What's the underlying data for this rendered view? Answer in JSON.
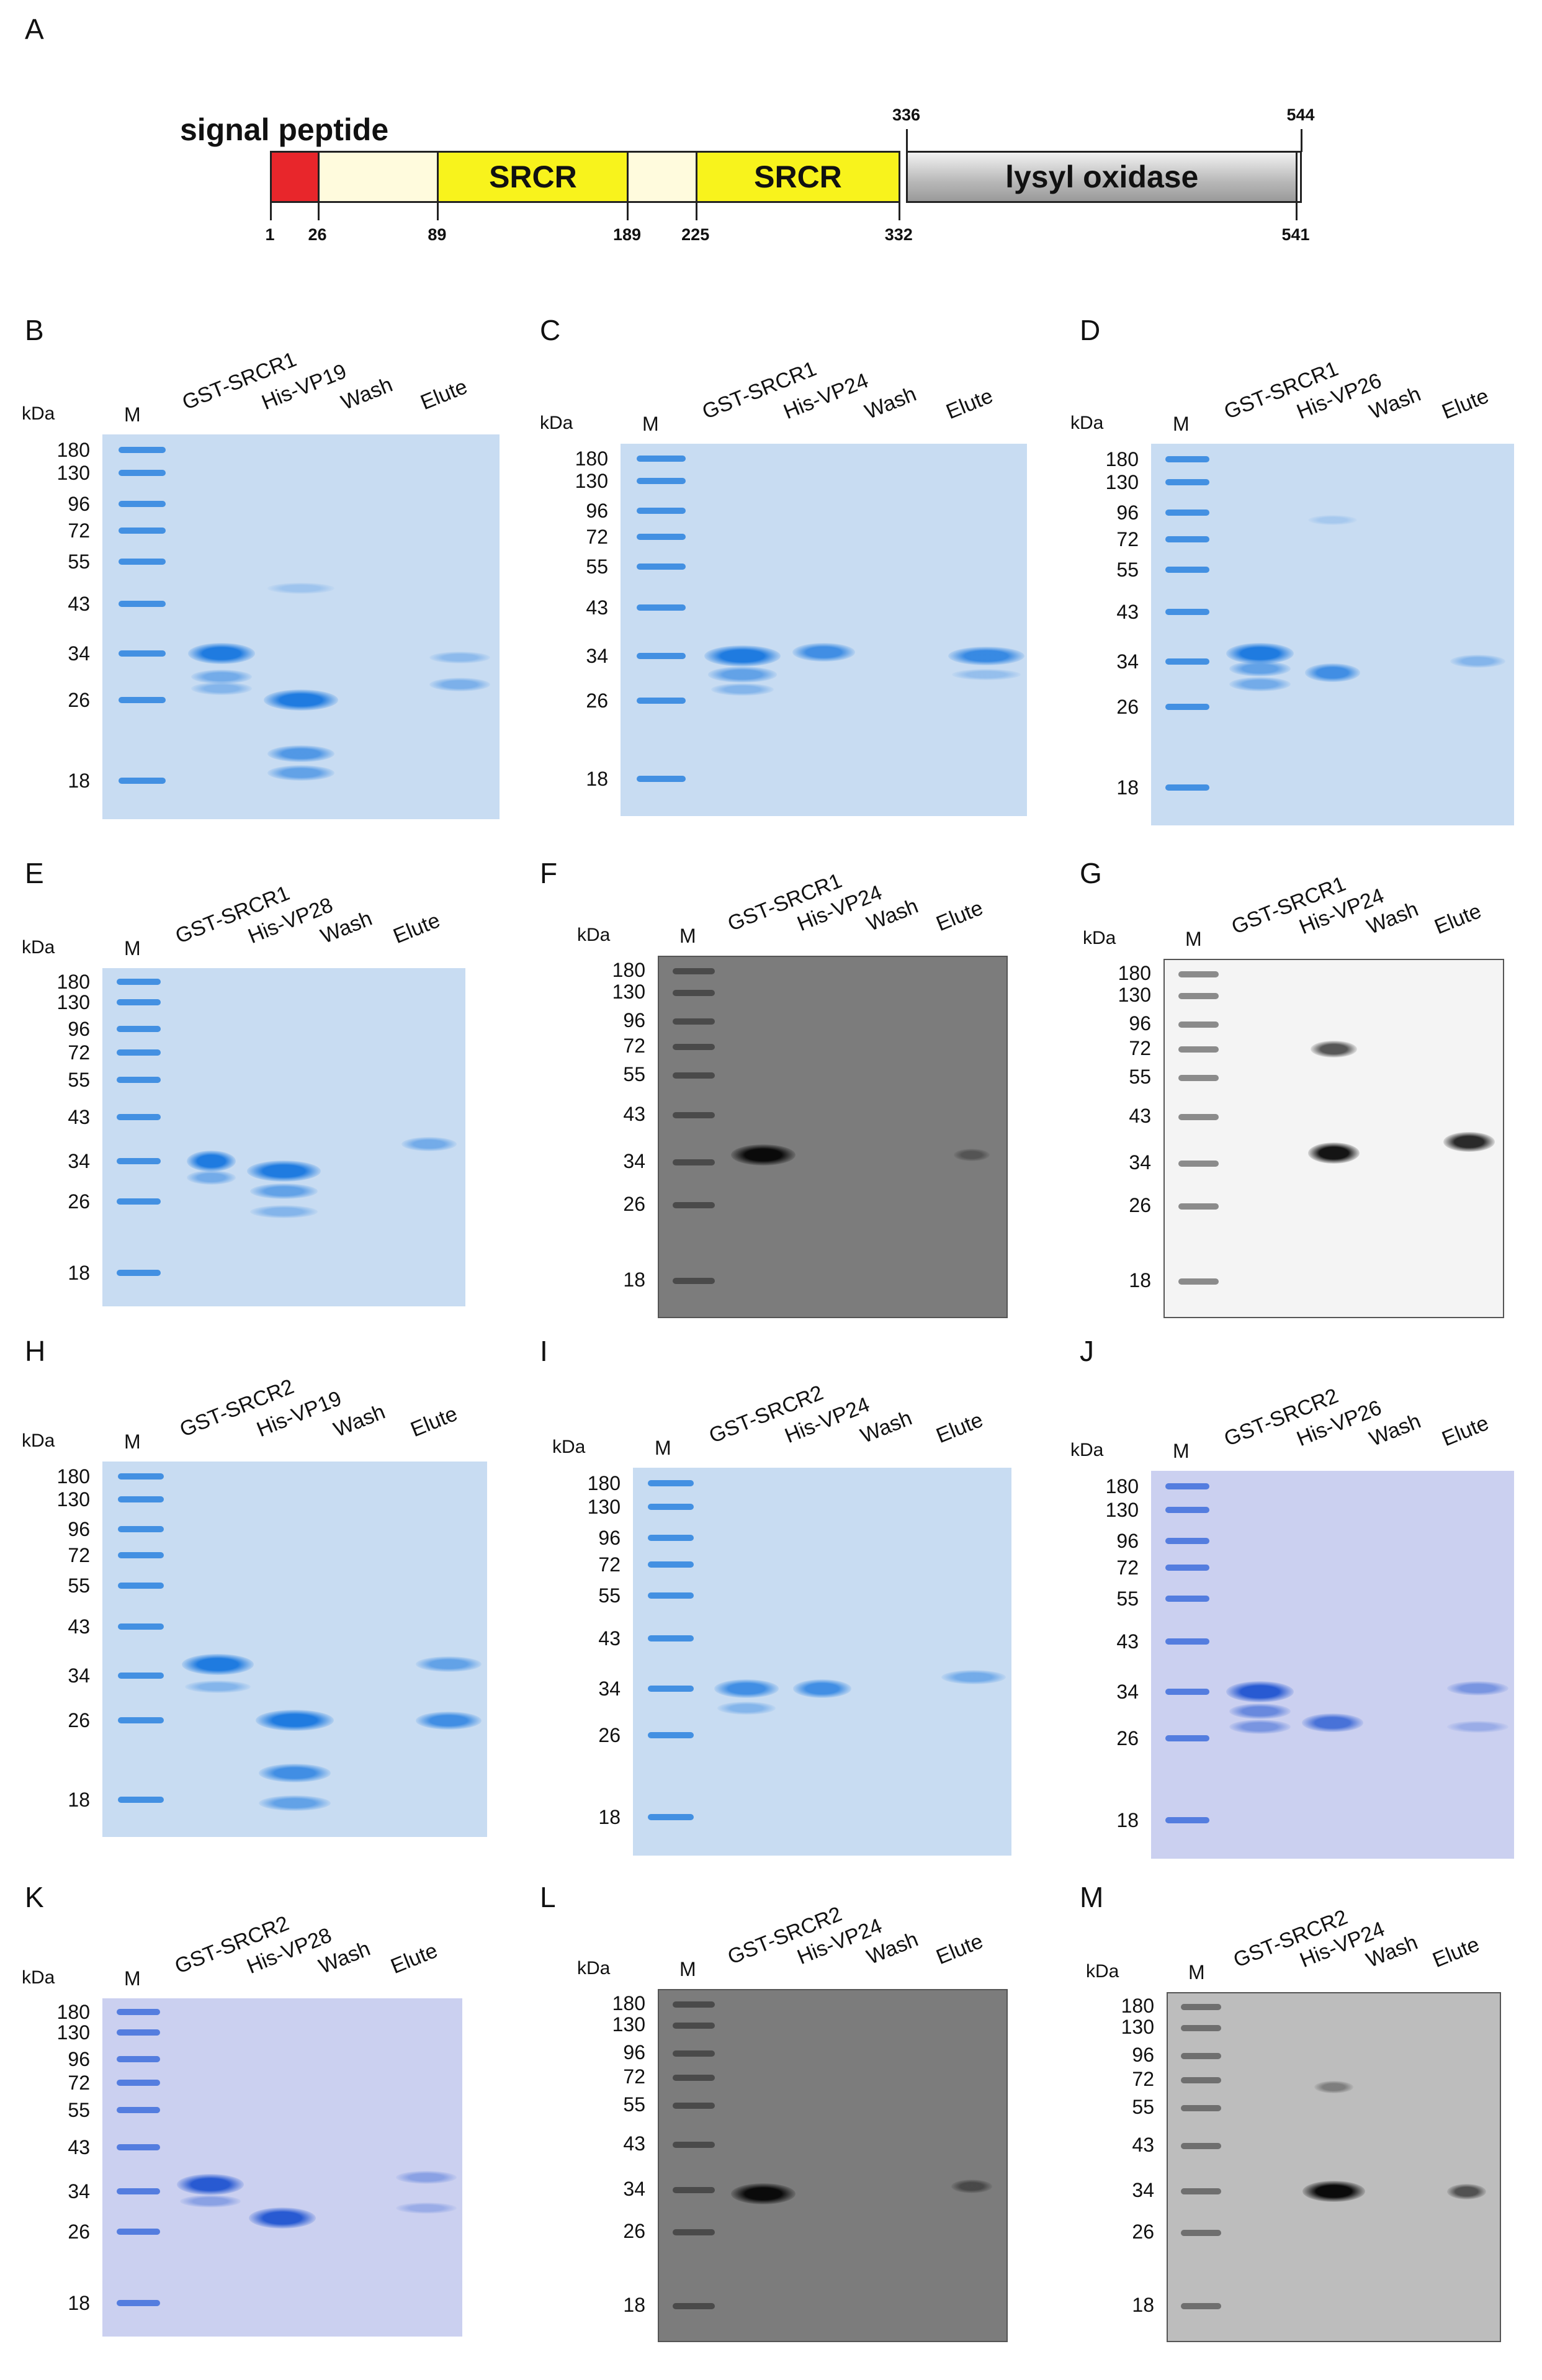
{
  "figure_label": "A",
  "diagram": {
    "signal_label": "signal peptide",
    "domains": [
      {
        "label": "",
        "start": 1,
        "end": 26,
        "color": "#e8262b"
      },
      {
        "label": "",
        "start": 26,
        "end": 89,
        "color": "#fffbdd"
      },
      {
        "label": "SRCR",
        "start": 89,
        "end": 189,
        "color": "#f8f31c"
      },
      {
        "label": "",
        "start": 189,
        "end": 225,
        "color": "#fffbdd"
      },
      {
        "label": "SRCR",
        "start": 225,
        "end": 332,
        "color": "#f8f31c"
      },
      {
        "label": "lysyl oxidase",
        "start": 336,
        "end": 541,
        "color": "#bdbdbd"
      }
    ],
    "positions_below": [
      "1",
      "26",
      "89",
      "189",
      "225",
      "332",
      "541"
    ],
    "positions_above": [
      "336",
      "544"
    ]
  },
  "panels": [
    {
      "id": "B",
      "style": "coomassie",
      "lanes": [
        "GST-SRCR1",
        "His-VP19",
        "Wash",
        "Elute"
      ]
    },
    {
      "id": "C",
      "style": "coomassie",
      "lanes": [
        "GST-SRCR1",
        "His-VP24",
        "Wash",
        "Elute"
      ]
    },
    {
      "id": "D",
      "style": "coomassie",
      "lanes": [
        "GST-SRCR1",
        "His-VP26",
        "Wash",
        "Elute"
      ]
    },
    {
      "id": "E",
      "style": "coomassie",
      "lanes": [
        "GST-SRCR1",
        "His-VP28",
        "Wash",
        "Elute"
      ]
    },
    {
      "id": "F",
      "style": "western-dark",
      "lanes": [
        "GST-SRCR1",
        "His-VP24",
        "Wash",
        "Elute"
      ]
    },
    {
      "id": "G",
      "style": "western-light",
      "lanes": [
        "GST-SRCR1",
        "His-VP24",
        "Wash",
        "Elute"
      ]
    },
    {
      "id": "H",
      "style": "coomassie",
      "lanes": [
        "GST-SRCR2",
        "His-VP19",
        "Wash",
        "Elute"
      ]
    },
    {
      "id": "I",
      "style": "coomassie",
      "lanes": [
        "GST-SRCR2",
        "His-VP24",
        "Wash",
        "Elute"
      ]
    },
    {
      "id": "J",
      "style": "coomassie-purple",
      "lanes": [
        "GST-SRCR2",
        "His-VP26",
        "Wash",
        "Elute"
      ]
    },
    {
      "id": "K",
      "style": "coomassie-purple",
      "lanes": [
        "GST-SRCR2",
        "His-VP28",
        "Wash",
        "Elute"
      ]
    },
    {
      "id": "L",
      "style": "western-dark",
      "lanes": [
        "GST-SRCR2",
        "His-VP24",
        "Wash",
        "Elute"
      ]
    },
    {
      "id": "M",
      "style": "western-grey",
      "lanes": [
        "GST-SRCR2",
        "His-VP24",
        "Wash",
        "Elute"
      ]
    }
  ],
  "kda_label": "kDa",
  "marker_label": "M",
  "mw_markers": [
    "180",
    "130",
    "96",
    "72",
    "55",
    "43",
    "34",
    "26",
    "18"
  ],
  "colors": {
    "coomassie_bg": "#c8dcf2",
    "coomassie_band": "#1f7be0",
    "purple_bg": "#cbd0f0",
    "western_dark_bg": "#7c7c7c",
    "western_light_bg": "#f4f4f4",
    "western_grey_bg": "#bdbdbd"
  }
}
